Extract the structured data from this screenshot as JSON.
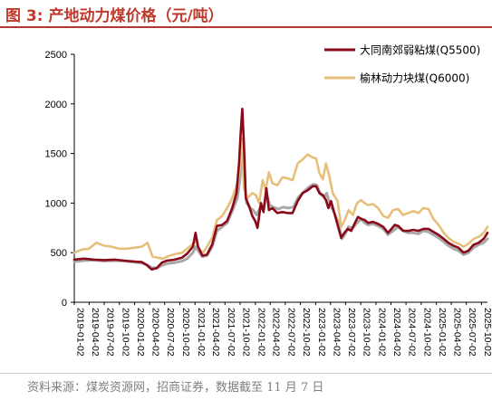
{
  "figure": {
    "title": "图 3:  产地动力煤价格（元/吨）",
    "source": "资料来源：煤炭资源网，招商证券，数据截至 11 月 7 日"
  },
  "chart_data": {
    "type": "line",
    "title": "",
    "xlabel": "",
    "ylabel": "",
    "ylim": [
      0,
      2500
    ],
    "yticks": [
      0,
      500,
      1000,
      1500,
      2000,
      2500
    ],
    "xlim": [
      "2019-01-02",
      "2025-11-07"
    ],
    "xtick_labels": [
      "2019-01-02",
      "2019-04-02",
      "2019-07-02",
      "2019-10-02",
      "2020-01-02",
      "2020-04-02",
      "2020-07-02",
      "2020-10-02",
      "2021-01-02",
      "2021-04-02",
      "2021-07-02",
      "2021-10-02",
      "2022-01-02",
      "2022-04-02",
      "2022-07-02",
      "2022-10-02",
      "2023-01-02",
      "2023-04-02",
      "2023-07-02",
      "2023-10-02",
      "2024-01-02",
      "2024-04-02",
      "2024-07-02",
      "2024-10-02",
      "2025-01-02",
      "2025-04-02",
      "2025-07-02",
      "2025-10-02"
    ],
    "grid": false,
    "legend_position": "top-right",
    "series": [
      {
        "name": "大同南郊弱粘煤(Q5500)",
        "color": "#8b0a1a",
        "points": [
          [
            "2019-01-02",
            430
          ],
          [
            "2019-03-01",
            440
          ],
          [
            "2019-05-01",
            430
          ],
          [
            "2019-07-01",
            425
          ],
          [
            "2019-09-01",
            430
          ],
          [
            "2019-11-01",
            420
          ],
          [
            "2020-01-02",
            410
          ],
          [
            "2020-02-15",
            405
          ],
          [
            "2020-03-15",
            375
          ],
          [
            "2020-04-15",
            330
          ],
          [
            "2020-05-15",
            345
          ],
          [
            "2020-06-15",
            400
          ],
          [
            "2020-07-15",
            420
          ],
          [
            "2020-09-01",
            430
          ],
          [
            "2020-10-15",
            450
          ],
          [
            "2020-11-15",
            490
          ],
          [
            "2020-12-20",
            560
          ],
          [
            "2021-01-05",
            700
          ],
          [
            "2021-01-20",
            560
          ],
          [
            "2021-02-15",
            470
          ],
          [
            "2021-03-15",
            480
          ],
          [
            "2021-04-15",
            580
          ],
          [
            "2021-05-15",
            770
          ],
          [
            "2021-06-15",
            780
          ],
          [
            "2021-07-15",
            820
          ],
          [
            "2021-08-15",
            950
          ],
          [
            "2021-09-10",
            1100
          ],
          [
            "2021-09-25",
            1400
          ],
          [
            "2021-10-05",
            1700
          ],
          [
            "2021-10-15",
            1950
          ],
          [
            "2021-10-25",
            1600
          ],
          [
            "2021-11-05",
            1050
          ],
          [
            "2021-11-25",
            970
          ],
          [
            "2021-12-15",
            870
          ],
          [
            "2022-01-01",
            820
          ],
          [
            "2022-01-15",
            750
          ],
          [
            "2022-02-05",
            1000
          ],
          [
            "2022-02-20",
            910
          ],
          [
            "2022-03-10",
            1150
          ],
          [
            "2022-03-25",
            930
          ],
          [
            "2022-04-15",
            950
          ],
          [
            "2022-05-15",
            900
          ],
          [
            "2022-06-15",
            910
          ],
          [
            "2022-07-15",
            900
          ],
          [
            "2022-08-15",
            900
          ],
          [
            "2022-09-15",
            1020
          ],
          [
            "2022-10-15",
            1100
          ],
          [
            "2022-11-15",
            1130
          ],
          [
            "2022-12-15",
            1170
          ],
          [
            "2023-01-05",
            1170
          ],
          [
            "2023-01-25",
            1100
          ],
          [
            "2023-02-15",
            1080
          ],
          [
            "2023-03-05",
            1030
          ],
          [
            "2023-03-20",
            950
          ],
          [
            "2023-04-05",
            1020
          ],
          [
            "2023-04-25",
            900
          ],
          [
            "2023-05-15",
            780
          ],
          [
            "2023-06-05",
            650
          ],
          [
            "2023-06-25",
            700
          ],
          [
            "2023-07-15",
            740
          ],
          [
            "2023-08-05",
            720
          ],
          [
            "2023-08-25",
            790
          ],
          [
            "2023-09-15",
            860
          ],
          [
            "2023-10-05",
            840
          ],
          [
            "2023-10-25",
            830
          ],
          [
            "2023-11-15",
            800
          ],
          [
            "2023-12-15",
            810
          ],
          [
            "2024-01-15",
            790
          ],
          [
            "2024-02-15",
            760
          ],
          [
            "2024-03-15",
            700
          ],
          [
            "2024-04-05",
            740
          ],
          [
            "2024-04-25",
            780
          ],
          [
            "2024-05-15",
            770
          ],
          [
            "2024-06-15",
            720
          ],
          [
            "2024-07-15",
            720
          ],
          [
            "2024-08-15",
            730
          ],
          [
            "2024-09-15",
            720
          ],
          [
            "2024-10-15",
            740
          ],
          [
            "2024-11-15",
            740
          ],
          [
            "2024-12-15",
            710
          ],
          [
            "2025-01-15",
            680
          ],
          [
            "2025-02-15",
            640
          ],
          [
            "2025-03-15",
            600
          ],
          [
            "2025-04-15",
            570
          ],
          [
            "2025-05-15",
            550
          ],
          [
            "2025-06-15",
            500
          ],
          [
            "2025-07-15",
            520
          ],
          [
            "2025-08-15",
            580
          ],
          [
            "2025-09-15",
            600
          ],
          [
            "2025-10-15",
            640
          ],
          [
            "2025-11-07",
            700
          ]
        ]
      },
      {
        "name": "榆林动力块煤(Q6000)",
        "color": "#e6c07b",
        "points": [
          [
            "2019-01-02",
            500
          ],
          [
            "2019-02-15",
            530
          ],
          [
            "2019-04-01",
            540
          ],
          [
            "2019-05-15",
            600
          ],
          [
            "2019-07-01",
            570
          ],
          [
            "2019-08-15",
            560
          ],
          [
            "2019-10-01",
            540
          ],
          [
            "2019-11-15",
            540
          ],
          [
            "2020-01-02",
            550
          ],
          [
            "2020-02-15",
            560
          ],
          [
            "2020-03-20",
            600
          ],
          [
            "2020-04-20",
            460
          ],
          [
            "2020-05-20",
            450
          ],
          [
            "2020-06-20",
            440
          ],
          [
            "2020-08-01",
            470
          ],
          [
            "2020-09-15",
            490
          ],
          [
            "2020-10-15",
            500
          ],
          [
            "2020-11-15",
            540
          ],
          [
            "2020-12-15",
            580
          ],
          [
            "2021-01-05",
            620
          ],
          [
            "2021-01-25",
            540
          ],
          [
            "2021-02-20",
            500
          ],
          [
            "2021-03-15",
            560
          ],
          [
            "2021-04-15",
            650
          ],
          [
            "2021-05-15",
            830
          ],
          [
            "2021-06-15",
            870
          ],
          [
            "2021-07-15",
            950
          ],
          [
            "2021-08-15",
            1050
          ],
          [
            "2021-09-15",
            1200
          ],
          [
            "2021-10-01",
            1350
          ],
          [
            "2021-10-12",
            1650
          ],
          [
            "2021-10-25",
            1150
          ],
          [
            "2021-11-15",
            1050
          ],
          [
            "2021-12-15",
            1100
          ],
          [
            "2022-01-05",
            1080
          ],
          [
            "2022-01-25",
            1000
          ],
          [
            "2022-02-15",
            1230
          ],
          [
            "2022-03-05",
            1130
          ],
          [
            "2022-03-25",
            1310
          ],
          [
            "2022-04-15",
            1200
          ],
          [
            "2022-05-15",
            1180
          ],
          [
            "2022-06-15",
            1260
          ],
          [
            "2022-07-15",
            1250
          ],
          [
            "2022-08-15",
            1230
          ],
          [
            "2022-09-15",
            1400
          ],
          [
            "2022-10-15",
            1440
          ],
          [
            "2022-11-15",
            1490
          ],
          [
            "2022-12-15",
            1460
          ],
          [
            "2023-01-05",
            1450
          ],
          [
            "2023-01-25",
            1300
          ],
          [
            "2023-02-15",
            1240
          ],
          [
            "2023-03-05",
            1400
          ],
          [
            "2023-03-25",
            1280
          ],
          [
            "2023-04-15",
            1100
          ],
          [
            "2023-05-15",
            1020
          ],
          [
            "2023-06-05",
            760
          ],
          [
            "2023-06-25",
            820
          ],
          [
            "2023-07-20",
            930
          ],
          [
            "2023-08-15",
            880
          ],
          [
            "2023-09-10",
            1000
          ],
          [
            "2023-10-05",
            1030
          ],
          [
            "2023-10-25",
            1000
          ],
          [
            "2023-11-15",
            980
          ],
          [
            "2023-12-15",
            990
          ],
          [
            "2024-01-15",
            950
          ],
          [
            "2024-02-15",
            870
          ],
          [
            "2024-03-15",
            850
          ],
          [
            "2024-04-15",
            930
          ],
          [
            "2024-05-15",
            940
          ],
          [
            "2024-06-15",
            880
          ],
          [
            "2024-07-15",
            900
          ],
          [
            "2024-08-15",
            920
          ],
          [
            "2024-09-15",
            900
          ],
          [
            "2024-10-15",
            950
          ],
          [
            "2024-11-15",
            940
          ],
          [
            "2024-12-15",
            840
          ],
          [
            "2025-01-15",
            780
          ],
          [
            "2025-02-15",
            700
          ],
          [
            "2025-03-15",
            650
          ],
          [
            "2025-04-15",
            610
          ],
          [
            "2025-05-15",
            590
          ],
          [
            "2025-06-15",
            560
          ],
          [
            "2025-07-15",
            590
          ],
          [
            "2025-08-15",
            640
          ],
          [
            "2025-09-15",
            660
          ],
          [
            "2025-10-15",
            700
          ],
          [
            "2025-11-07",
            760
          ]
        ]
      },
      {
        "name": "",
        "color": "#a9a9a9",
        "points": [
          [
            "2019-01-02",
            410
          ],
          [
            "2019-03-01",
            420
          ],
          [
            "2019-05-01",
            425
          ],
          [
            "2019-07-01",
            415
          ],
          [
            "2019-09-01",
            420
          ],
          [
            "2019-11-01",
            415
          ],
          [
            "2020-01-02",
            405
          ],
          [
            "2020-02-15",
            395
          ],
          [
            "2020-03-15",
            380
          ],
          [
            "2020-04-15",
            350
          ],
          [
            "2020-05-15",
            345
          ],
          [
            "2020-06-15",
            370
          ],
          [
            "2020-07-15",
            390
          ],
          [
            "2020-09-01",
            400
          ],
          [
            "2020-10-15",
            415
          ],
          [
            "2020-11-15",
            440
          ],
          [
            "2020-12-20",
            500
          ],
          [
            "2021-01-05",
            560
          ],
          [
            "2021-01-20",
            520
          ],
          [
            "2021-02-15",
            460
          ],
          [
            "2021-03-15",
            470
          ],
          [
            "2021-04-15",
            560
          ],
          [
            "2021-05-15",
            720
          ],
          [
            "2021-06-15",
            760
          ],
          [
            "2021-07-15",
            800
          ],
          [
            "2021-08-15",
            920
          ],
          [
            "2021-09-15",
            1050
          ],
          [
            "2021-10-01",
            1250
          ],
          [
            "2021-10-12",
            1600
          ],
          [
            "2021-10-25",
            1250
          ],
          [
            "2021-11-10",
            1000
          ],
          [
            "2021-12-01",
            950
          ],
          [
            "2021-12-20",
            930
          ],
          [
            "2022-01-10",
            880
          ],
          [
            "2022-02-01",
            960
          ],
          [
            "2022-02-20",
            930
          ],
          [
            "2022-03-10",
            1100
          ],
          [
            "2022-03-30",
            980
          ],
          [
            "2022-04-20",
            960
          ],
          [
            "2022-05-20",
            940
          ],
          [
            "2022-06-20",
            960
          ],
          [
            "2022-07-20",
            950
          ],
          [
            "2022-08-20",
            960
          ],
          [
            "2022-09-20",
            1060
          ],
          [
            "2022-10-20",
            1110
          ],
          [
            "2022-11-20",
            1160
          ],
          [
            "2022-12-20",
            1190
          ],
          [
            "2023-01-10",
            1180
          ],
          [
            "2023-01-30",
            1090
          ],
          [
            "2023-02-20",
            1060
          ],
          [
            "2023-03-10",
            1100
          ],
          [
            "2023-03-30",
            980
          ],
          [
            "2023-04-20",
            920
          ],
          [
            "2023-05-20",
            800
          ],
          [
            "2023-06-10",
            640
          ],
          [
            "2023-06-30",
            690
          ],
          [
            "2023-07-20",
            760
          ],
          [
            "2023-08-15",
            750
          ],
          [
            "2023-09-10",
            800
          ],
          [
            "2023-10-05",
            840
          ],
          [
            "2023-10-25",
            800
          ],
          [
            "2023-11-15",
            780
          ],
          [
            "2023-12-15",
            790
          ],
          [
            "2024-01-15",
            770
          ],
          [
            "2024-02-15",
            740
          ],
          [
            "2024-03-15",
            680
          ],
          [
            "2024-04-15",
            720
          ],
          [
            "2024-05-15",
            760
          ],
          [
            "2024-06-15",
            720
          ],
          [
            "2024-07-15",
            700
          ],
          [
            "2024-08-15",
            700
          ],
          [
            "2024-09-15",
            690
          ],
          [
            "2024-10-15",
            720
          ],
          [
            "2024-11-15",
            710
          ],
          [
            "2024-12-15",
            680
          ],
          [
            "2025-01-15",
            650
          ],
          [
            "2025-02-15",
            610
          ],
          [
            "2025-03-15",
            570
          ],
          [
            "2025-04-15",
            540
          ],
          [
            "2025-05-15",
            520
          ],
          [
            "2025-06-15",
            480
          ],
          [
            "2025-07-15",
            500
          ],
          [
            "2025-08-15",
            550
          ],
          [
            "2025-09-15",
            580
          ],
          [
            "2025-10-15",
            600
          ],
          [
            "2025-11-07",
            640
          ]
        ]
      }
    ]
  }
}
